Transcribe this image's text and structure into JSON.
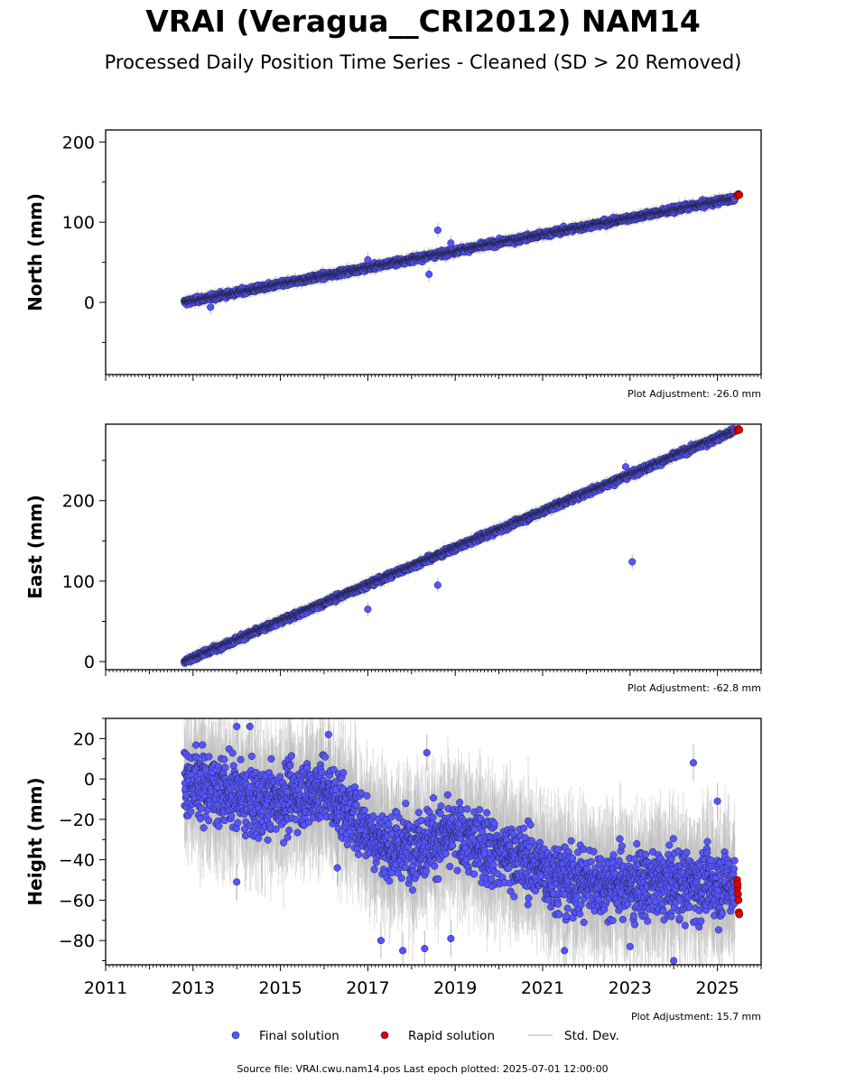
{
  "title": "VRAI (Veragua__CRI2012) NAM14",
  "subtitle": "Processed Daily Position Time Series - Cleaned (SD > 20 Removed)",
  "legend": {
    "final": "Final solution",
    "rapid": "Rapid solution",
    "sd": "Std. Dev."
  },
  "footer": "Source file: VRAI.cwu.nam14.pos  Last epoch plotted: 2025-07-01 12:00:00",
  "colors": {
    "final": "#5555ff",
    "rapid": "#e00000",
    "sd": "#b8b8b8",
    "edge": "#222244"
  },
  "chart_data": [
    {
      "type": "scatter",
      "ylabel": "North (mm)",
      "adjustment": "Plot Adjustment: -26.0 mm",
      "xlim": [
        2011,
        2026
      ],
      "ylim": [
        -90,
        215
      ],
      "yticks": [
        0,
        100,
        200
      ],
      "series": [
        {
          "name": "Final solution",
          "trend": [
            [
              2012.8,
              0
            ],
            [
              2025.4,
              130
            ]
          ],
          "scatter": 3,
          "outliers": [
            [
              2018.6,
              90
            ],
            [
              2018.9,
              74
            ],
            [
              2017.0,
              53
            ],
            [
              2013.4,
              -6
            ],
            [
              2018.4,
              35
            ]
          ]
        },
        {
          "name": "Rapid solution",
          "points": [
            [
              2025.45,
              133
            ],
            [
              2025.48,
              135
            ],
            [
              2025.5,
              134
            ]
          ]
        }
      ]
    },
    {
      "type": "scatter",
      "ylabel": "East (mm)",
      "adjustment": "Plot Adjustment: -62.8 mm",
      "xlim": [
        2011,
        2026
      ],
      "ylim": [
        -10,
        295
      ],
      "yticks": [
        0,
        100,
        200
      ],
      "series": [
        {
          "name": "Final solution",
          "trend": [
            [
              2012.8,
              0
            ],
            [
              2025.4,
              287
            ]
          ],
          "scatter": 3,
          "outliers": [
            [
              2023.05,
              124
            ],
            [
              2017.0,
              65
            ],
            [
              2018.6,
              95
            ],
            [
              2022.9,
              242
            ]
          ]
        },
        {
          "name": "Rapid solution",
          "points": [
            [
              2025.45,
              287
            ],
            [
              2025.48,
              289
            ],
            [
              2025.5,
              288
            ]
          ]
        }
      ]
    },
    {
      "type": "scatter",
      "ylabel": "Height (mm)",
      "adjustment": "Plot Adjustment: 15.7 mm",
      "xlim": [
        2011,
        2026
      ],
      "ylim": [
        -92,
        30
      ],
      "yticks": [
        -80,
        -60,
        -40,
        -20,
        0,
        20
      ],
      "xticks": [
        2011,
        2013,
        2015,
        2017,
        2019,
        2021,
        2023,
        2025
      ],
      "series": [
        {
          "name": "Final solution",
          "trend": [
            [
              2012.8,
              0
            ],
            [
              2014.5,
              -12
            ],
            [
              2016.0,
              -5
            ],
            [
              2017.5,
              -35
            ],
            [
              2019.0,
              -28
            ],
            [
              2020.5,
              -40
            ],
            [
              2021.5,
              -50
            ],
            [
              2022.5,
              -52
            ],
            [
              2025.4,
              -52
            ]
          ],
          "scatter": 14,
          "outliers": [
            [
              2014.0,
              26
            ],
            [
              2014.3,
              26
            ],
            [
              2014.0,
              -51
            ],
            [
              2017.3,
              -80
            ],
            [
              2017.8,
              -85
            ],
            [
              2018.3,
              -84
            ],
            [
              2018.35,
              13
            ],
            [
              2018.9,
              -79
            ],
            [
              2016.1,
              22
            ],
            [
              2021.5,
              -85
            ],
            [
              2024.0,
              -90
            ],
            [
              2023.0,
              -83
            ],
            [
              2024.45,
              8
            ],
            [
              2025.0,
              -11
            ],
            [
              2016.3,
              -44
            ]
          ]
        },
        {
          "name": "Rapid solution",
          "points": [
            [
              2025.45,
              -50
            ],
            [
              2025.46,
              -54
            ],
            [
              2025.47,
              -57
            ],
            [
              2025.48,
              -60
            ],
            [
              2025.49,
              -66
            ],
            [
              2025.5,
              -67
            ],
            [
              2025.46,
              -52
            ]
          ]
        }
      ]
    }
  ]
}
